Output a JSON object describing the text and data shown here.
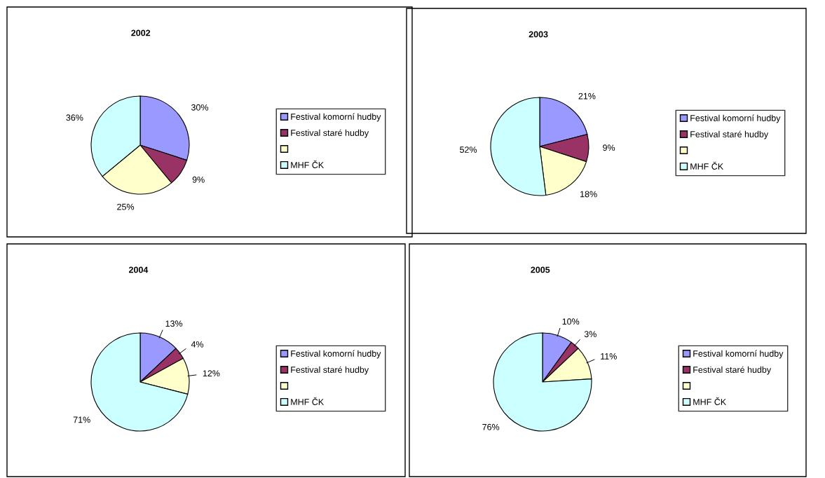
{
  "chart_data": [
    {
      "type": "pie",
      "title": "2002",
      "categories": [
        "Festival komorní hudby",
        "Festival staré hudby",
        null,
        "MHF ČK"
      ],
      "values": [
        30,
        9,
        25,
        36
      ],
      "colors": [
        "#9999ff",
        "#993366",
        "#ffffcc",
        "#ccffff"
      ],
      "value_labels": [
        "30%",
        "9%",
        "25%",
        "36%"
      ],
      "legend": "right"
    },
    {
      "type": "pie",
      "title": "2003",
      "categories": [
        "Festival komorní hudby",
        "Festival staré hudby",
        null,
        "MHF ČK"
      ],
      "values": [
        21,
        9,
        18,
        52
      ],
      "colors": [
        "#9999ff",
        "#993366",
        "#ffffcc",
        "#ccffff"
      ],
      "value_labels": [
        "21%",
        "9%",
        "18%",
        "52%"
      ],
      "legend": "right"
    },
    {
      "type": "pie",
      "title": "2004",
      "categories": [
        "Festival komorní hudby",
        "Festival staré hudby",
        null,
        "MHF ČK"
      ],
      "values": [
        13,
        4,
        12,
        71
      ],
      "colors": [
        "#9999ff",
        "#993366",
        "#ffffcc",
        "#ccffff"
      ],
      "value_labels": [
        "13%",
        "4%",
        "12%",
        "71%"
      ],
      "legend": "right"
    },
    {
      "type": "pie",
      "title": "2005",
      "categories": [
        "Festival komorní hudby",
        "Festival staré hudby",
        null,
        "MHF ČK"
      ],
      "values": [
        10,
        3,
        11,
        76
      ],
      "colors": [
        "#9999ff",
        "#993366",
        "#ffffcc",
        "#ccffff"
      ],
      "value_labels": [
        "10%",
        "3%",
        "11%",
        "76%"
      ],
      "legend": "right"
    }
  ]
}
